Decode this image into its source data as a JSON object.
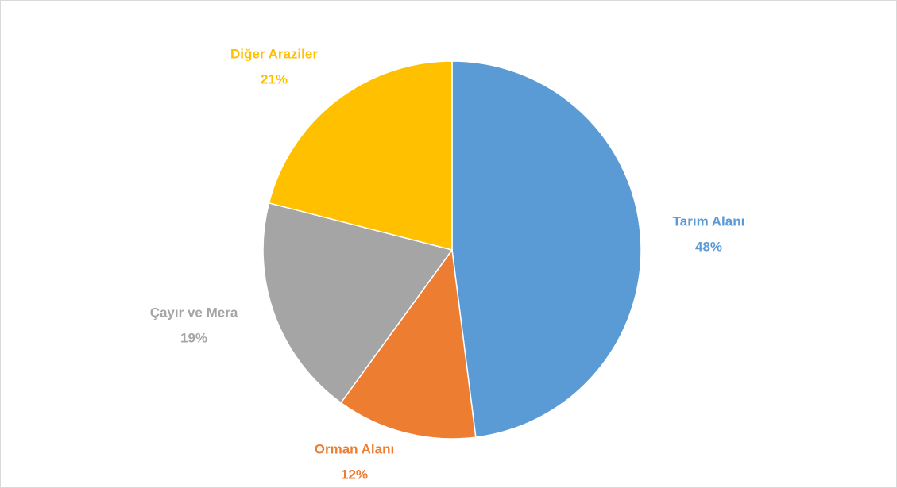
{
  "chart_data": {
    "type": "pie",
    "categories": [
      "Tarım Alanı",
      "Orman Alanı",
      "Çayır ve Mera",
      "Diğer Araziler"
    ],
    "values": [
      48,
      12,
      19,
      21
    ],
    "value_labels": [
      "48%",
      "12%",
      "19%",
      "21%"
    ],
    "colors": [
      "#5b9bd5",
      "#ed7d31",
      "#a5a5a5",
      "#ffc000"
    ]
  }
}
